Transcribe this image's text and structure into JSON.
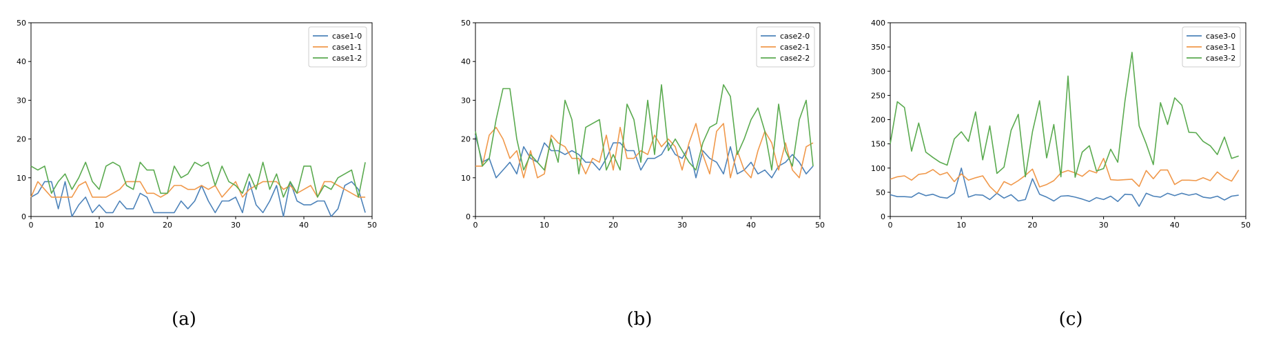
{
  "captions": [
    "(a)",
    "(b)",
    "(c)"
  ],
  "colors": {
    "series0": "#4c82b9",
    "series1": "#f0984a",
    "series2": "#5aaa4f"
  },
  "chart_data": [
    {
      "type": "line",
      "xlim": [
        0,
        50
      ],
      "ylim": [
        0,
        50
      ],
      "xticks": [
        "0",
        "10",
        "20",
        "30",
        "40",
        "50"
      ],
      "yticks": [
        "0",
        "10",
        "20",
        "30",
        "40",
        "50"
      ],
      "legend": "top-right",
      "x": [
        0,
        1,
        2,
        3,
        4,
        5,
        6,
        7,
        8,
        9,
        10,
        11,
        12,
        13,
        14,
        15,
        16,
        17,
        18,
        19,
        20,
        21,
        22,
        23,
        24,
        25,
        26,
        27,
        28,
        29,
        30,
        31,
        32,
        33,
        34,
        35,
        36,
        37,
        38,
        39,
        40,
        41,
        42,
        43,
        44,
        45,
        46,
        47,
        48,
        49
      ],
      "series": [
        {
          "name": "case1-0",
          "values": [
            5,
            6,
            9,
            9,
            2,
            9,
            0,
            3,
            5,
            1,
            3,
            1,
            1,
            4,
            2,
            2,
            6,
            5,
            1,
            1,
            1,
            1,
            4,
            2,
            4,
            8,
            4,
            1,
            4,
            4,
            5,
            1,
            9,
            3,
            1,
            4,
            8,
            0,
            9,
            4,
            3,
            3,
            4,
            4,
            0,
            2,
            8,
            9,
            7,
            1
          ]
        },
        {
          "name": "case1-1",
          "values": [
            5,
            9,
            7,
            5,
            5,
            5,
            5,
            8,
            9,
            5,
            5,
            5,
            6,
            7,
            9,
            9,
            9,
            6,
            6,
            5,
            6,
            8,
            8,
            7,
            7,
            8,
            7,
            8,
            5,
            7,
            9,
            5,
            7,
            8,
            9,
            9,
            9,
            7,
            8,
            6,
            7,
            8,
            5,
            9,
            9,
            8,
            7,
            6,
            5,
            5
          ]
        },
        {
          "name": "case1-2",
          "values": [
            13,
            12,
            13,
            6,
            9,
            11,
            7,
            10,
            14,
            9,
            7,
            13,
            14,
            13,
            8,
            7,
            14,
            12,
            12,
            6,
            6,
            13,
            10,
            11,
            14,
            13,
            14,
            8,
            13,
            9,
            8,
            6,
            11,
            7,
            14,
            7,
            11,
            5,
            9,
            6,
            13,
            13,
            5,
            8,
            7,
            10,
            11,
            12,
            5,
            14
          ]
        }
      ]
    },
    {
      "type": "line",
      "xlim": [
        0,
        50
      ],
      "ylim": [
        0,
        50
      ],
      "xticks": [
        "0",
        "10",
        "20",
        "30",
        "40",
        "50"
      ],
      "yticks": [
        "0",
        "10",
        "20",
        "30",
        "40",
        "50"
      ],
      "legend": "top-right",
      "x": [
        0,
        1,
        2,
        3,
        4,
        5,
        6,
        7,
        8,
        9,
        10,
        11,
        12,
        13,
        14,
        15,
        16,
        17,
        18,
        19,
        20,
        21,
        22,
        23,
        24,
        25,
        26,
        27,
        28,
        29,
        30,
        31,
        32,
        33,
        34,
        35,
        36,
        37,
        38,
        39,
        40,
        41,
        42,
        43,
        44,
        45,
        46,
        47,
        48,
        49
      ],
      "series": [
        {
          "name": "case2-0",
          "values": [
            21,
            14,
            15,
            10,
            12,
            14,
            11,
            18,
            15,
            14,
            19,
            17,
            17,
            16,
            17,
            16,
            14,
            14,
            12,
            15,
            19,
            19,
            17,
            17,
            12,
            15,
            15,
            16,
            19,
            16,
            15,
            18,
            10,
            17,
            15,
            14,
            11,
            18,
            11,
            12,
            14,
            11,
            12,
            10,
            13,
            14,
            16,
            14,
            11,
            13
          ]
        },
        {
          "name": "case2-1",
          "values": [
            13,
            13,
            21,
            23,
            20,
            15,
            17,
            10,
            17,
            10,
            11,
            21,
            19,
            18,
            15,
            15,
            11,
            15,
            14,
            21,
            12,
            23,
            15,
            15,
            17,
            16,
            21,
            18,
            20,
            18,
            12,
            19,
            24,
            16,
            11,
            22,
            24,
            10,
            17,
            12,
            10,
            17,
            22,
            19,
            12,
            19,
            12,
            10,
            18,
            19
          ]
        },
        {
          "name": "case2-2",
          "values": [
            22,
            13,
            15,
            25,
            33,
            33,
            20,
            12,
            16,
            14,
            12,
            20,
            14,
            30,
            25,
            11,
            23,
            24,
            25,
            12,
            16,
            12,
            29,
            25,
            14,
            30,
            16,
            34,
            17,
            20,
            17,
            14,
            12,
            19,
            23,
            24,
            34,
            31,
            16,
            20,
            25,
            28,
            22,
            12,
            29,
            17,
            13,
            25,
            30,
            13
          ]
        }
      ]
    },
    {
      "type": "line",
      "xlim": [
        0,
        50
      ],
      "ylim": [
        0,
        400
      ],
      "xticks": [
        "0",
        "10",
        "20",
        "30",
        "40",
        "50"
      ],
      "yticks": [
        "0",
        "50",
        "100",
        "150",
        "200",
        "250",
        "300",
        "350",
        "400"
      ],
      "legend": "top-right",
      "x": [
        0,
        1,
        2,
        3,
        4,
        5,
        6,
        7,
        8,
        9,
        10,
        11,
        12,
        13,
        14,
        15,
        16,
        17,
        18,
        19,
        20,
        21,
        22,
        23,
        24,
        25,
        26,
        27,
        28,
        29,
        30,
        31,
        32,
        33,
        34,
        35,
        36,
        37,
        38,
        39,
        40,
        41,
        42,
        43,
        44,
        45,
        46,
        47,
        48,
        49
      ],
      "series": [
        {
          "name": "case3-0",
          "values": [
            45,
            41,
            41,
            40,
            49,
            43,
            46,
            40,
            38,
            48,
            100,
            40,
            45,
            44,
            35,
            48,
            38,
            45,
            32,
            35,
            78,
            46,
            40,
            32,
            42,
            43,
            40,
            36,
            31,
            39,
            35,
            42,
            31,
            46,
            45,
            21,
            48,
            42,
            40,
            48,
            43,
            48,
            44,
            47,
            40,
            38,
            42,
            34,
            42,
            44
          ]
        },
        {
          "name": "case3-1",
          "values": [
            77,
            82,
            84,
            75,
            87,
            89,
            97,
            86,
            91,
            72,
            88,
            75,
            80,
            84,
            62,
            48,
            72,
            65,
            74,
            85,
            98,
            61,
            66,
            74,
            90,
            95,
            90,
            83,
            95,
            90,
            120,
            76,
            75,
            76,
            77,
            62,
            95,
            78,
            96,
            96,
            66,
            75,
            75,
            74,
            80,
            74,
            92,
            80,
            73,
            96
          ]
        },
        {
          "name": "case3-2",
          "values": [
            150,
            237,
            225,
            135,
            193,
            133,
            122,
            112,
            106,
            160,
            175,
            155,
            216,
            117,
            187,
            89,
            102,
            178,
            211,
            82,
            175,
            239,
            121,
            190,
            82,
            290,
            81,
            133,
            146,
            94,
            99,
            139,
            112,
            238,
            339,
            187,
            150,
            107,
            235,
            190,
            245,
            230,
            174,
            173,
            155,
            146,
            128,
            164,
            120,
            125
          ]
        }
      ]
    }
  ]
}
